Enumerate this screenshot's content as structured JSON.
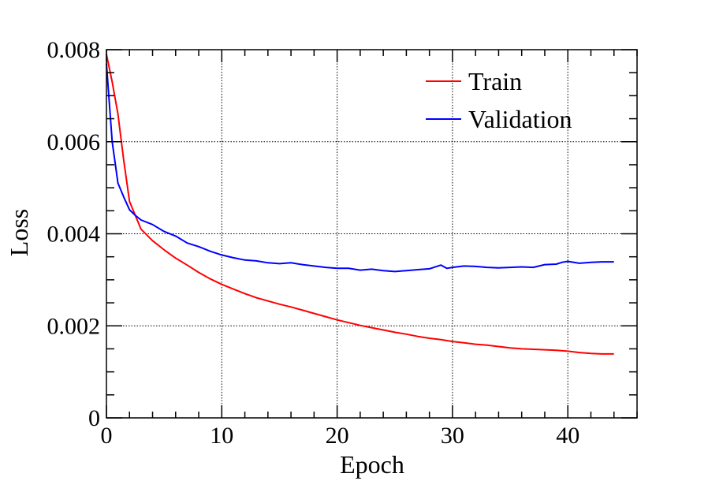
{
  "chart_data": {
    "type": "line",
    "title": "",
    "xlabel": "Epoch",
    "ylabel": "Loss",
    "xlim": [
      0,
      46
    ],
    "ylim": [
      0,
      0.008
    ],
    "grid": true,
    "legend_position": "top-right",
    "x_ticks": [
      0,
      10,
      20,
      30,
      40
    ],
    "x_tick_labels": [
      "0",
      "10",
      "20",
      "30",
      "40"
    ],
    "y_ticks": [
      0,
      0.002,
      0.004,
      0.006,
      0.008
    ],
    "y_tick_labels": [
      "0",
      "0.002",
      "0.004",
      "0.006",
      "0.008"
    ],
    "series": [
      {
        "name": "Train",
        "color": "#ff0000",
        "x": [
          0,
          0.5,
          1,
          1.5,
          2,
          2.5,
          3,
          4,
          5,
          6,
          7,
          8,
          9,
          10,
          11,
          12,
          13,
          14,
          15,
          16,
          17,
          18,
          19,
          20,
          21,
          22,
          23,
          24,
          25,
          26,
          27,
          28,
          29,
          30,
          31,
          32,
          33,
          34,
          35,
          36,
          37,
          38,
          39,
          40,
          41,
          42,
          43,
          44
        ],
        "values": [
          0.0079,
          0.0073,
          0.0066,
          0.0056,
          0.0047,
          0.0044,
          0.0041,
          0.00385,
          0.00365,
          0.00347,
          0.00332,
          0.00316,
          0.00302,
          0.0029,
          0.0028,
          0.0027,
          0.00261,
          0.00254,
          0.00247,
          0.00241,
          0.00234,
          0.00227,
          0.0022,
          0.00213,
          0.00207,
          0.00201,
          0.00196,
          0.00191,
          0.00186,
          0.00182,
          0.00177,
          0.00173,
          0.0017,
          0.00166,
          0.00163,
          0.0016,
          0.00158,
          0.00155,
          0.00152,
          0.0015,
          0.00149,
          0.00148,
          0.00147,
          0.00145,
          0.00142,
          0.0014,
          0.00139,
          0.00139
        ]
      },
      {
        "name": "Validation",
        "color": "#0000ff",
        "x": [
          0,
          0.5,
          1,
          1.5,
          2,
          2.5,
          3,
          4,
          5,
          6,
          7,
          8,
          9,
          10,
          11,
          12,
          13,
          14,
          15,
          16,
          17,
          18,
          19,
          20,
          21,
          22,
          23,
          24,
          25,
          26,
          27,
          28,
          29,
          29.5,
          30,
          31,
          32,
          33,
          34,
          35,
          36,
          37,
          38,
          39,
          39.5,
          40,
          41,
          42,
          43,
          44
        ],
        "values": [
          0.0077,
          0.006,
          0.0051,
          0.0048,
          0.00452,
          0.0044,
          0.0043,
          0.0042,
          0.00405,
          0.00395,
          0.0038,
          0.00372,
          0.00362,
          0.00354,
          0.00348,
          0.00343,
          0.00341,
          0.00337,
          0.00335,
          0.00337,
          0.00333,
          0.0033,
          0.00327,
          0.00325,
          0.00325,
          0.00321,
          0.00323,
          0.0032,
          0.00318,
          0.0032,
          0.00322,
          0.00324,
          0.00332,
          0.00325,
          0.00327,
          0.0033,
          0.00329,
          0.00327,
          0.00326,
          0.00327,
          0.00328,
          0.00327,
          0.00333,
          0.00334,
          0.00338,
          0.0034,
          0.00336,
          0.00338,
          0.00339,
          0.00339
        ]
      }
    ]
  }
}
